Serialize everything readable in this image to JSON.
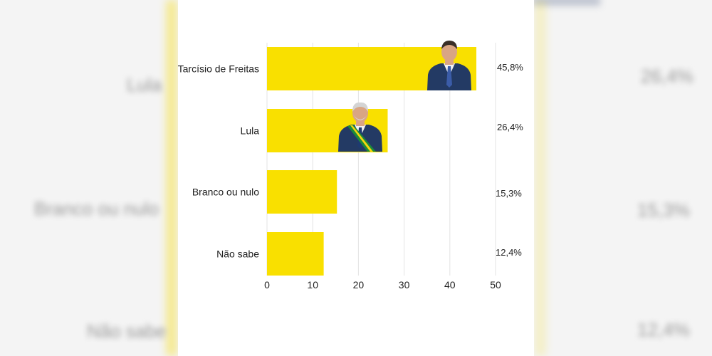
{
  "chart_data": {
    "type": "bar",
    "orientation": "horizontal",
    "categories": [
      "Tarcísio de Freitas",
      "Lula",
      "Branco ou nulo",
      "Não sabe"
    ],
    "values": [
      45.8,
      26.4,
      15.3,
      12.4
    ],
    "value_labels": [
      "45,8%",
      "26,4%",
      "15,3%",
      "12,4%"
    ],
    "xticks": [
      0,
      10,
      20,
      30,
      40,
      50
    ],
    "xlim": [
      0,
      50
    ],
    "grid": true,
    "bar_color": "#f9e000",
    "title": "",
    "xlabel": "",
    "ylabel": ""
  },
  "colors": {
    "bar": "#f9e000",
    "suit": "#233a64",
    "skin": "#d9a584",
    "sash_green": "#1c8a3a"
  },
  "icons": [
    "candidate-photo-tarcisio",
    "candidate-photo-lula"
  ]
}
